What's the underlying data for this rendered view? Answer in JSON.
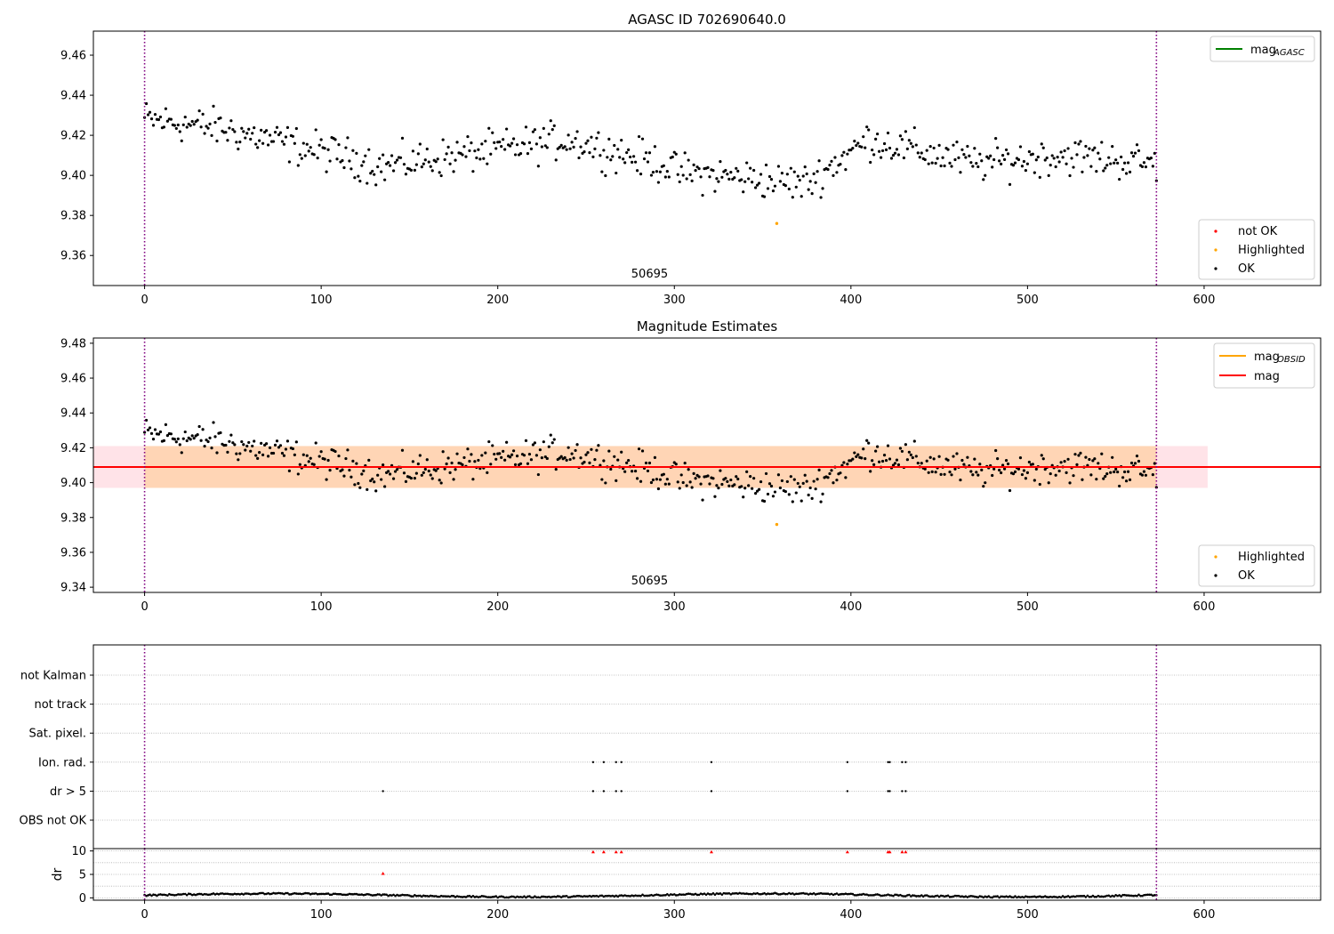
{
  "chart_data": [
    {
      "type": "scatter",
      "title": "AGASC ID 702690640.0",
      "xlim": [
        -29,
        666
      ],
      "ylim": [
        9.345,
        9.472
      ],
      "x_ticks": [
        0,
        100,
        200,
        300,
        400,
        500,
        600
      ],
      "y_ticks": [
        9.36,
        9.38,
        9.4,
        9.42,
        9.44,
        9.46
      ],
      "y_tick_labels": [
        "9.36",
        "9.38",
        "9.40",
        "9.42",
        "9.44",
        "9.46"
      ],
      "obsid_label": "50695",
      "obsid_label_x": 286,
      "obsid_boundaries": [
        0,
        573
      ],
      "legend_lines": [
        {
          "label": "mag",
          "subscript": "AGASC",
          "color": "#008000"
        }
      ],
      "legend_markers": [
        {
          "label": "not OK",
          "color": "#ff0000"
        },
        {
          "label": "Highlighted",
          "color": "#ffa500"
        },
        {
          "label": "OK",
          "color": "#000000"
        }
      ],
      "highlighted_points": [
        {
          "x": 358,
          "y": 9.376
        }
      ]
    },
    {
      "type": "scatter",
      "title": "Magnitude Estimates",
      "xlim": [
        -29,
        666
      ],
      "ylim": [
        9.337,
        9.483
      ],
      "x_ticks": [
        0,
        100,
        200,
        300,
        400,
        500,
        600
      ],
      "y_ticks": [
        9.34,
        9.36,
        9.38,
        9.4,
        9.42,
        9.44,
        9.46,
        9.48
      ],
      "y_tick_labels": [
        "9.34",
        "9.36",
        "9.38",
        "9.40",
        "9.42",
        "9.44",
        "9.46",
        "9.48"
      ],
      "obsid_label": "50695",
      "obsid_label_x": 286,
      "obsid_boundaries": [
        0,
        573
      ],
      "mag": 9.409,
      "mag_band": [
        9.397,
        9.421
      ],
      "mag_band_x": [
        -29,
        602
      ],
      "obsid_band_x": [
        0,
        573
      ],
      "legend_lines": [
        {
          "label": "mag",
          "subscript": "OBSID",
          "color": "#ffa500"
        },
        {
          "label": "mag",
          "subscript": "",
          "color": "#ff0000"
        }
      ],
      "legend_markers": [
        {
          "label": "Highlighted",
          "color": "#ffa500"
        },
        {
          "label": "OK",
          "color": "#000000"
        }
      ],
      "highlighted_points": [
        {
          "x": 358,
          "y": 9.376
        }
      ]
    },
    {
      "type": "scatter",
      "xlim": [
        -29,
        666
      ],
      "x_ticks": [
        0,
        100,
        200,
        300,
        400,
        500,
        600
      ],
      "categories": [
        "not Kalman",
        "not track",
        "Sat. pixel.",
        "Ion. rad.",
        "dr > 5",
        "OBS not OK"
      ],
      "flag_points": {
        "Ion. rad.": [
          254,
          260,
          267,
          270,
          321,
          398,
          421,
          422,
          429,
          431
        ],
        "dr > 5": [
          135,
          254,
          260,
          267,
          270,
          321,
          398,
          421,
          422,
          429,
          431
        ]
      },
      "obsid_boundaries": [
        0,
        573
      ]
    },
    {
      "type": "scatter",
      "ylabel": "dr",
      "xlim": [
        -29,
        666
      ],
      "ylim": [
        -0.5,
        10.5
      ],
      "x_ticks": [
        0,
        100,
        200,
        300,
        400,
        500,
        600
      ],
      "y_ticks": [
        0,
        5,
        10
      ],
      "y_tick_labels": [
        "0",
        "5",
        "10"
      ],
      "outliers": [
        {
          "x": 135,
          "y": 5.2
        },
        {
          "x": 254,
          "y": 9.8
        },
        {
          "x": 260,
          "y": 9.8
        },
        {
          "x": 267,
          "y": 9.8
        },
        {
          "x": 270,
          "y": 9.8
        },
        {
          "x": 321,
          "y": 9.8
        },
        {
          "x": 398,
          "y": 9.8
        },
        {
          "x": 421,
          "y": 9.8
        },
        {
          "x": 422,
          "y": 9.8
        },
        {
          "x": 429,
          "y": 9.8
        },
        {
          "x": 431,
          "y": 9.8
        }
      ],
      "obsid_boundaries": [
        0,
        573
      ]
    }
  ],
  "colors": {
    "ok": "#000000",
    "not_ok": "#ff0000",
    "highlighted": "#ffa500",
    "obsid_line": "#800080",
    "mag_line": "#ff0000",
    "mag_band": "#ffc0cb",
    "obsid_band": "#ffa500"
  }
}
